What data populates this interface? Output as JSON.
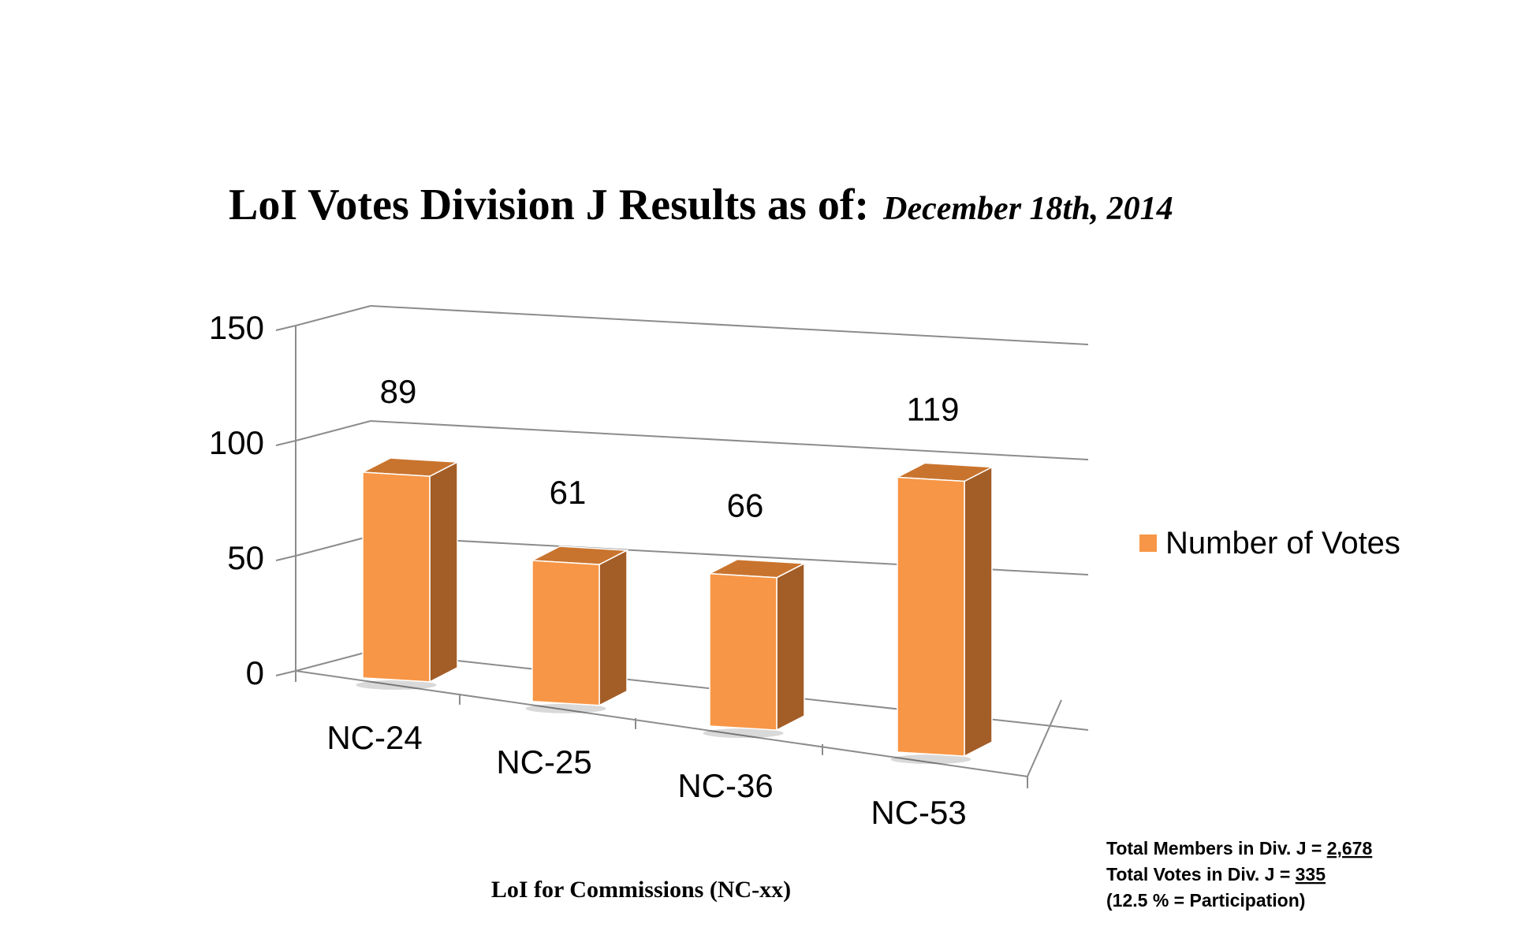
{
  "title": {
    "main": "LoI Votes Division J Results as of",
    "colon": ":",
    "date": "December 18th, 2014"
  },
  "legend": {
    "label": "Number of Votes",
    "color": "#f79646"
  },
  "colors": {
    "bar_front": "#f79646",
    "bar_top": "#c9742e",
    "bar_side": "#a35d27",
    "grid": "#8c8c8c"
  },
  "notes": {
    "members_prefix": "Total Members in Div. J = ",
    "members_value": "2,678",
    "votes_prefix": "Total Votes in Div. J = ",
    "votes_value": "335",
    "participation": "(12.5 % = Participation)"
  },
  "chart_data": {
    "type": "bar",
    "title": "LoI Votes Division J Results as of: December 18th, 2014",
    "xlabel": "LoI for Commissions (NC-xx)",
    "ylabel": "",
    "categories": [
      "NC-24",
      "NC-25",
      "NC-36",
      "NC-53"
    ],
    "series": [
      {
        "name": "Number of Votes",
        "values": [
          89,
          61,
          66,
          119
        ]
      }
    ],
    "ylim": [
      0,
      150
    ],
    "yticks": [
      0,
      50,
      100,
      150
    ],
    "grid": true,
    "legend_position": "right",
    "data_labels": true
  }
}
